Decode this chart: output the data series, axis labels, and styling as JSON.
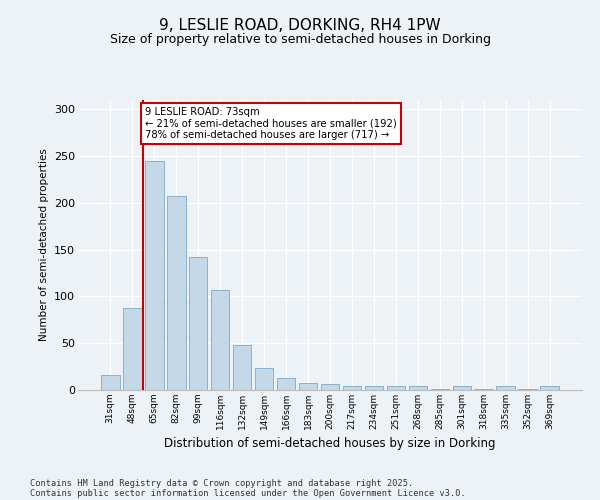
{
  "title": "9, LESLIE ROAD, DORKING, RH4 1PW",
  "subtitle": "Size of property relative to semi-detached houses in Dorking",
  "xlabel": "Distribution of semi-detached houses by size in Dorking",
  "ylabel": "Number of semi-detached properties",
  "categories": [
    "31sqm",
    "48sqm",
    "65sqm",
    "82sqm",
    "99sqm",
    "116sqm",
    "132sqm",
    "149sqm",
    "166sqm",
    "183sqm",
    "200sqm",
    "217sqm",
    "234sqm",
    "251sqm",
    "268sqm",
    "285sqm",
    "301sqm",
    "318sqm",
    "335sqm",
    "352sqm",
    "369sqm"
  ],
  "values": [
    16,
    88,
    245,
    207,
    142,
    107,
    48,
    23,
    13,
    8,
    6,
    4,
    4,
    4,
    4,
    1,
    4,
    1,
    4,
    1,
    4
  ],
  "bar_color": "#c5d8e8",
  "bar_edge_color": "#7baac9",
  "annotation_text": "9 LESLIE ROAD: 73sqm\n← 21% of semi-detached houses are smaller (192)\n78% of semi-detached houses are larger (717) →",
  "annotation_box_color": "#cc0000",
  "ylim": [
    0,
    310
  ],
  "yticks": [
    0,
    50,
    100,
    150,
    200,
    250,
    300
  ],
  "footer_line1": "Contains HM Land Registry data © Crown copyright and database right 2025.",
  "footer_line2": "Contains public sector information licensed under the Open Government Licence v3.0.",
  "bg_color": "#edf2f7",
  "plot_bg_color": "#edf2f7",
  "title_fontsize": 11,
  "subtitle_fontsize": 9,
  "red_line_x": 1.5
}
